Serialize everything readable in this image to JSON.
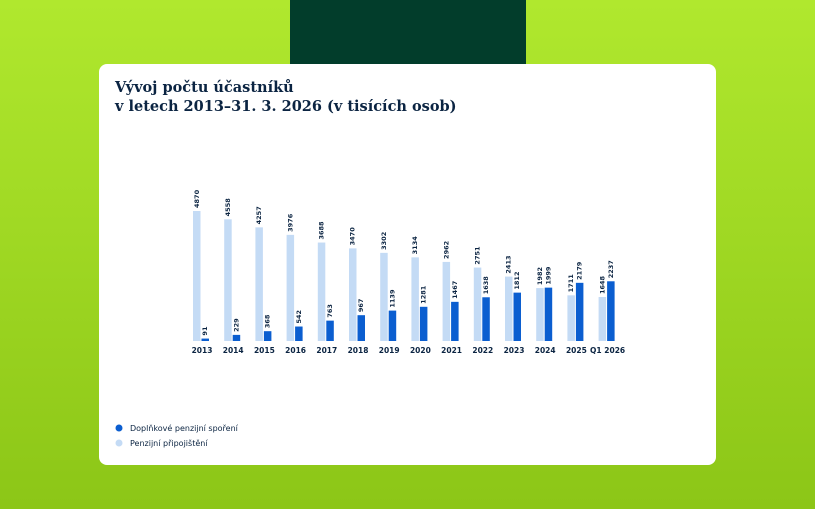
{
  "chart_data": {
    "type": "bar",
    "title": [
      "Vývoj počtu účastníků",
      "v letech 2013–31. 3. 2026 (v tisících osob)"
    ],
    "categories": [
      "2013",
      "2014",
      "2015",
      "2016",
      "2017",
      "2018",
      "2019",
      "2020",
      "2021",
      "2022",
      "2023",
      "2024",
      "2025",
      "Q1 2026"
    ],
    "series": [
      {
        "name": "Doplňkové penzijní spoření",
        "color": "#0b5ed0",
        "values": [
          91,
          229,
          368,
          542,
          763,
          967,
          1139,
          1281,
          1467,
          1638,
          1812,
          1999,
          2179,
          2237
        ]
      },
      {
        "name": "Penzijní připojištění",
        "color": "#c4dbf5",
        "values": [
          4870,
          4558,
          4257,
          3976,
          3688,
          3470,
          3302,
          3134,
          2962,
          2751,
          2413,
          1982,
          1711,
          1648
        ]
      }
    ]
  }
}
